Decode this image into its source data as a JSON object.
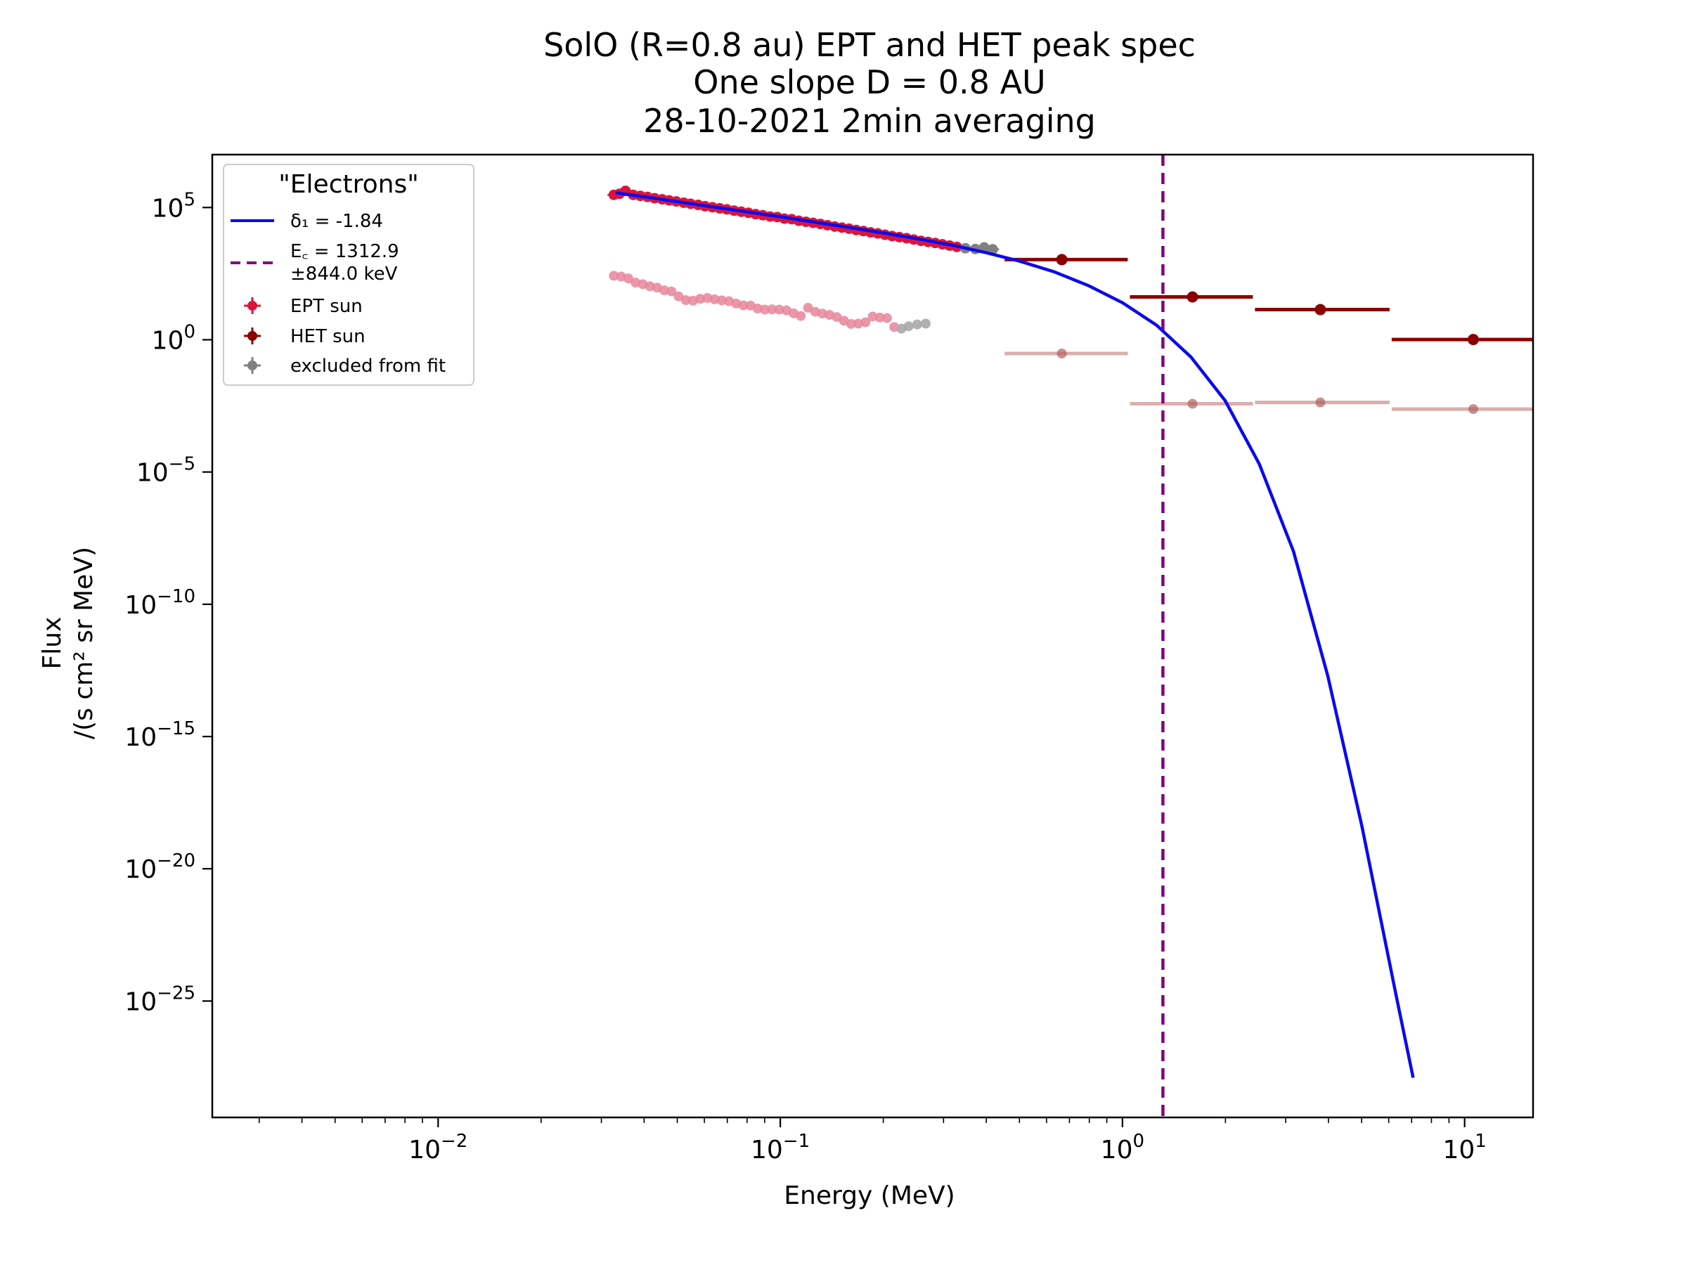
{
  "chart_data": {
    "type": "scatter",
    "title_lines": [
      "SolO  (R=0.8 au) EPT and HET  peak spec",
      "One slope D = 0.8 AU",
      "28-10-2021  2min  averaging"
    ],
    "xlabel": "Energy (MeV)",
    "ylabel_lines": [
      "Flux",
      "/(s cm² sr MeV)"
    ],
    "xscale": "log",
    "yscale": "log",
    "xlim_log10": [
      -2.66,
      1.2
    ],
    "ylim_log10": [
      -29.4,
      7.0
    ],
    "x_ticks": [
      {
        "exp": -2,
        "label": "10",
        "sup": "−2"
      },
      {
        "exp": -1,
        "label": "10",
        "sup": "−1"
      },
      {
        "exp": 0,
        "label": "10",
        "sup": "0"
      },
      {
        "exp": 1,
        "label": "10",
        "sup": "1"
      }
    ],
    "y_ticks": [
      {
        "exp": 5,
        "label": "10",
        "sup": "5"
      },
      {
        "exp": 0,
        "label": "10",
        "sup": "0"
      },
      {
        "exp": -5,
        "label": "10",
        "sup": "−5"
      },
      {
        "exp": -10,
        "label": "10",
        "sup": "−10"
      },
      {
        "exp": -15,
        "label": "10",
        "sup": "−15"
      },
      {
        "exp": -20,
        "label": "10",
        "sup": "−20"
      },
      {
        "exp": -25,
        "label": "10",
        "sup": "−25"
      }
    ],
    "legend": {
      "title": "\"Electrons\"",
      "position": "upper left",
      "fit_label": "δ₁ = -1.84",
      "cutoff_label_line1": "E꜀ =  1312.9",
      "cutoff_label_line2": "±844.0 keV",
      "ept_label": "EPT sun",
      "het_label": "HET sun",
      "excluded_label": "excluded from fit"
    },
    "colors": {
      "fit": "#0a0aee",
      "cutoff": "#800080",
      "ept": "#dc143c",
      "het": "#8b0000",
      "excluded": "#808080",
      "background_ept": "#e8859b",
      "background_het": "#d4a0a0"
    },
    "fit": {
      "delta1": -1.84,
      "curve_log10": [
        {
          "x": -1.4815,
          "y": 5.56
        },
        {
          "x": -1.4,
          "y": 5.41
        },
        {
          "x": -1.3,
          "y": 5.22
        },
        {
          "x": -1.2,
          "y": 5.03
        },
        {
          "x": -1.1,
          "y": 4.84
        },
        {
          "x": -1.0,
          "y": 4.65
        },
        {
          "x": -0.9,
          "y": 4.45
        },
        {
          "x": -0.8,
          "y": 4.25
        },
        {
          "x": -0.7,
          "y": 4.04
        },
        {
          "x": -0.6,
          "y": 3.82
        },
        {
          "x": -0.5,
          "y": 3.58
        },
        {
          "x": -0.4,
          "y": 3.3
        },
        {
          "x": -0.3,
          "y": 2.97
        },
        {
          "x": -0.2,
          "y": 2.57
        },
        {
          "x": -0.1,
          "y": 2.05
        },
        {
          "x": 0.0,
          "y": 1.4
        },
        {
          "x": 0.1,
          "y": 0.55
        },
        {
          "x": 0.2,
          "y": -0.65
        },
        {
          "x": 0.3,
          "y": -2.3
        },
        {
          "x": 0.4,
          "y": -4.7
        },
        {
          "x": 0.5,
          "y": -8.0
        },
        {
          "x": 0.6,
          "y": -12.7
        },
        {
          "x": 0.7,
          "y": -18.4
        },
        {
          "x": 0.8,
          "y": -24.8
        },
        {
          "x": 0.8495,
          "y": -27.9
        }
      ]
    },
    "cutoff_energy_MeV": 1.3129,
    "ept_sun": [
      {
        "x": -1.4865,
        "y": 5.48
      },
      {
        "x": -1.47,
        "y": 5.52
      },
      {
        "x": -1.4524,
        "y": 5.63
      },
      {
        "x": -1.43,
        "y": 5.48
      },
      {
        "x": -1.409,
        "y": 5.44
      },
      {
        "x": -1.388,
        "y": 5.4
      },
      {
        "x": -1.367,
        "y": 5.35
      },
      {
        "x": -1.345,
        "y": 5.31
      },
      {
        "x": -1.325,
        "y": 5.27
      },
      {
        "x": -1.304,
        "y": 5.23
      },
      {
        "x": -1.282,
        "y": 5.18
      },
      {
        "x": -1.262,
        "y": 5.14
      },
      {
        "x": -1.24,
        "y": 5.1
      },
      {
        "x": -1.22,
        "y": 5.05
      },
      {
        "x": -1.198,
        "y": 5.01
      },
      {
        "x": -1.177,
        "y": 4.97
      },
      {
        "x": -1.156,
        "y": 4.93
      },
      {
        "x": -1.135,
        "y": 4.88
      },
      {
        "x": -1.114,
        "y": 4.84
      },
      {
        "x": -1.093,
        "y": 4.8
      },
      {
        "x": -1.072,
        "y": 4.75
      },
      {
        "x": -1.051,
        "y": 4.71
      },
      {
        "x": -1.03,
        "y": 4.66
      },
      {
        "x": -1.009,
        "y": 4.64
      },
      {
        "x": -0.988,
        "y": 4.58
      },
      {
        "x": -0.967,
        "y": 4.56
      },
      {
        "x": -0.946,
        "y": 4.5
      },
      {
        "x": -0.925,
        "y": 4.46
      },
      {
        "x": -0.904,
        "y": 4.42
      },
      {
        "x": -0.883,
        "y": 4.38
      },
      {
        "x": -0.862,
        "y": 4.33
      },
      {
        "x": -0.841,
        "y": 4.28
      },
      {
        "x": -0.82,
        "y": 4.24
      },
      {
        "x": -0.799,
        "y": 4.2
      },
      {
        "x": -0.778,
        "y": 4.15
      },
      {
        "x": -0.757,
        "y": 4.11
      },
      {
        "x": -0.736,
        "y": 4.06
      },
      {
        "x": -0.715,
        "y": 4.02
      },
      {
        "x": -0.694,
        "y": 3.97
      },
      {
        "x": -0.673,
        "y": 3.92
      },
      {
        "x": -0.652,
        "y": 3.88
      },
      {
        "x": -0.631,
        "y": 3.84
      },
      {
        "x": -0.61,
        "y": 3.79
      },
      {
        "x": -0.589,
        "y": 3.74
      },
      {
        "x": -0.568,
        "y": 3.7
      },
      {
        "x": -0.547,
        "y": 3.66
      },
      {
        "x": -0.526,
        "y": 3.61
      },
      {
        "x": -0.505,
        "y": 3.56
      },
      {
        "x": -0.484,
        "y": 3.51
      }
    ],
    "ept_excluded": [
      {
        "x": -0.459,
        "y": 3.46
      },
      {
        "x": -0.43,
        "y": 3.43
      },
      {
        "x": -0.404,
        "y": 3.49
      },
      {
        "x": -0.379,
        "y": 3.42
      }
    ],
    "ept_background": [
      {
        "x": -1.4865,
        "y": 2.42
      },
      {
        "x": -1.465,
        "y": 2.39
      },
      {
        "x": -1.444,
        "y": 2.32
      },
      {
        "x": -1.423,
        "y": 2.16
      },
      {
        "x": -1.402,
        "y": 2.1
      },
      {
        "x": -1.381,
        "y": 2.02
      },
      {
        "x": -1.36,
        "y": 1.97
      },
      {
        "x": -1.339,
        "y": 1.87
      },
      {
        "x": -1.318,
        "y": 1.83
      },
      {
        "x": -1.297,
        "y": 1.64
      },
      {
        "x": -1.276,
        "y": 1.5
      },
      {
        "x": -1.255,
        "y": 1.48
      },
      {
        "x": -1.234,
        "y": 1.55
      },
      {
        "x": -1.213,
        "y": 1.58
      },
      {
        "x": -1.192,
        "y": 1.53
      },
      {
        "x": -1.171,
        "y": 1.49
      },
      {
        "x": -1.15,
        "y": 1.46
      },
      {
        "x": -1.129,
        "y": 1.37
      },
      {
        "x": -1.108,
        "y": 1.3
      },
      {
        "x": -1.087,
        "y": 1.29
      },
      {
        "x": -1.066,
        "y": 1.18
      },
      {
        "x": -1.045,
        "y": 1.14
      },
      {
        "x": -1.024,
        "y": 1.15
      },
      {
        "x": -1.003,
        "y": 1.14
      },
      {
        "x": -0.982,
        "y": 1.11
      },
      {
        "x": -0.961,
        "y": 1.0
      },
      {
        "x": -0.94,
        "y": 0.9
      },
      {
        "x": -0.919,
        "y": 1.21
      },
      {
        "x": -0.898,
        "y": 1.06
      },
      {
        "x": -0.877,
        "y": 0.99
      },
      {
        "x": -0.856,
        "y": 0.94
      },
      {
        "x": -0.835,
        "y": 0.86
      },
      {
        "x": -0.814,
        "y": 0.72
      },
      {
        "x": -0.793,
        "y": 0.6
      },
      {
        "x": -0.772,
        "y": 0.61
      },
      {
        "x": -0.751,
        "y": 0.66
      },
      {
        "x": -0.73,
        "y": 0.88
      },
      {
        "x": -0.709,
        "y": 0.84
      },
      {
        "x": -0.688,
        "y": 0.82
      },
      {
        "x": -0.667,
        "y": 0.48
      }
    ],
    "ept_background_excluded": [
      {
        "x": -0.646,
        "y": 0.42
      },
      {
        "x": -0.625,
        "y": 0.51
      },
      {
        "x": -0.6,
        "y": 0.58
      },
      {
        "x": -0.575,
        "y": 0.61
      }
    ],
    "het_sun": [
      {
        "x": -0.1772,
        "xlo": -0.3444,
        "xhi": 0.0155,
        "y": 3.03
      },
      {
        "x": 0.2047,
        "xlo": 0.0217,
        "xhi": 0.3811,
        "y": 1.62
      },
      {
        "x": 0.5783,
        "xlo": 0.3873,
        "xhi": 0.7806,
        "y": 1.14
      },
      {
        "x": 1.0253,
        "xlo": 0.7868,
        "xhi": 1.2,
        "y": 0.01
      }
    ],
    "het_background": [
      {
        "x": -0.1772,
        "xlo": -0.3444,
        "xhi": 0.0155,
        "y": -0.52
      },
      {
        "x": 0.2047,
        "xlo": 0.0217,
        "xhi": 0.3811,
        "y": -2.42
      },
      {
        "x": 0.5783,
        "xlo": 0.3873,
        "xhi": 0.7806,
        "y": -2.37
      },
      {
        "x": 1.0253,
        "xlo": 0.7868,
        "xhi": 1.2,
        "y": -2.62
      }
    ]
  }
}
